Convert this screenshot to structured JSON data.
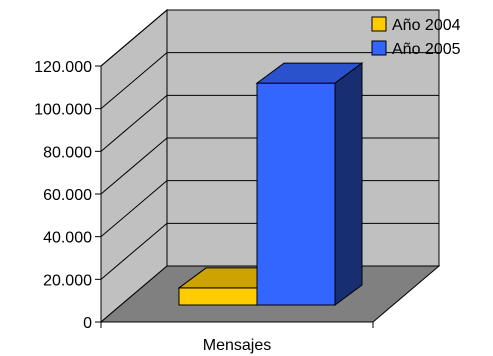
{
  "chart_data": {
    "type": "bar",
    "title": "",
    "xlabel": "",
    "ylabel": "",
    "categories": [
      "Mensajes"
    ],
    "series": [
      {
        "name": "Año 2004",
        "values": [
          8000
        ],
        "color": "#FFCC00"
      },
      {
        "name": "Año 2005",
        "values": [
          104000
        ],
        "color": "#3366FF"
      }
    ],
    "ylim": [
      0,
      120000
    ],
    "yticks": [
      0,
      20000,
      40000,
      60000,
      80000,
      100000,
      120000
    ],
    "ytick_labels": [
      "0",
      "20.000",
      "40.000",
      "60.000",
      "80.000",
      "100.000",
      "120.000"
    ],
    "grid": true,
    "legend_position": "top-right",
    "style": "3d-clustered-column",
    "colors": {
      "back_wall": "#C0C0C0",
      "floor": "#808080",
      "grid": "#000000"
    }
  }
}
